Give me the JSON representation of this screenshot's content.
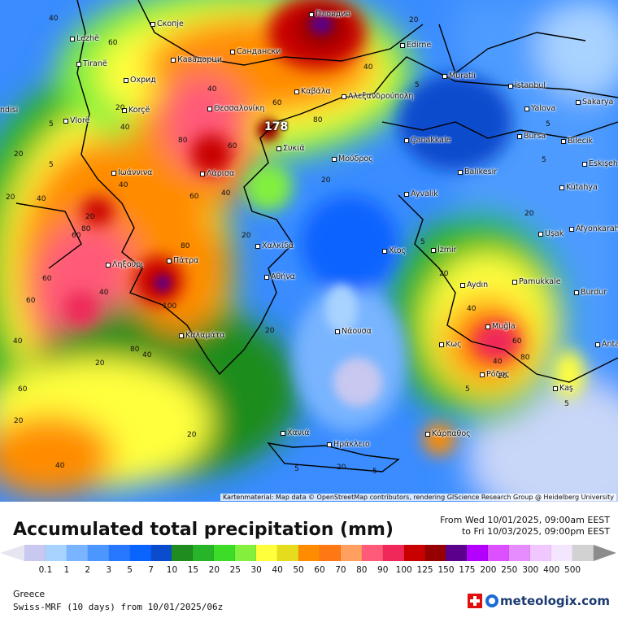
{
  "map": {
    "peak_value": "178",
    "attribution": "Kartenmaterial: Map data © OpenStreetMap contributors, rendering GIScience Research Group @ Heidelberg University",
    "cities": [
      {
        "id": "plovdiv",
        "name": "Пловдив"
      },
      {
        "id": "skopje",
        "name": "Скопје"
      },
      {
        "id": "lezhe",
        "name": "Lezhë"
      },
      {
        "id": "sandanski",
        "name": "Сандански"
      },
      {
        "id": "edirne",
        "name": "Edirne"
      },
      {
        "id": "kavadarci",
        "name": "Кавадарци"
      },
      {
        "id": "tirane",
        "name": "Tiranë"
      },
      {
        "id": "murath",
        "name": "Muratlı"
      },
      {
        "id": "ohrid",
        "name": "Охрид"
      },
      {
        "id": "kavala",
        "name": "Καβάλα"
      },
      {
        "id": "istanbul",
        "name": "İstanbul"
      },
      {
        "id": "alexandroupoli",
        "name": "Αλεξανδρούπολη"
      },
      {
        "id": "andisi",
        "name": "ndisi"
      },
      {
        "id": "korce",
        "name": "Korçë"
      },
      {
        "id": "thessaloniki",
        "name": "Θεσσαλονίκη"
      },
      {
        "id": "yalova",
        "name": "Yalova"
      },
      {
        "id": "sakarya",
        "name": "Sakarya"
      },
      {
        "id": "vlore",
        "name": "Vlorë"
      },
      {
        "id": "sykia",
        "name": "Συκιά"
      },
      {
        "id": "canakkale",
        "name": "Çanakkale"
      },
      {
        "id": "bursa",
        "name": "Bursa"
      },
      {
        "id": "bilecik",
        "name": "Bilecik"
      },
      {
        "id": "moudros",
        "name": "Μούδρος"
      },
      {
        "id": "eskisehir",
        "name": "Eskişeh"
      },
      {
        "id": "ioannina",
        "name": "Ιωάννινα"
      },
      {
        "id": "larisa",
        "name": "Λάρισα"
      },
      {
        "id": "balikesir",
        "name": "Balıkesir"
      },
      {
        "id": "kutahya",
        "name": "Kütahya"
      },
      {
        "id": "ayvalik",
        "name": "Ayvalık"
      },
      {
        "id": "usak",
        "name": "Uşak"
      },
      {
        "id": "afyonkarahisar",
        "name": "Afyonkarahi"
      },
      {
        "id": "chalkida",
        "name": "Χαλκίδα"
      },
      {
        "id": "chios",
        "name": "Χίος"
      },
      {
        "id": "izmir",
        "name": "İzmir"
      },
      {
        "id": "lixouri",
        "name": "Ληξούρι"
      },
      {
        "id": "patra",
        "name": "Πάτρα"
      },
      {
        "id": "athina",
        "name": "Αθήνα"
      },
      {
        "id": "aydin",
        "name": "Aydın"
      },
      {
        "id": "pamukkale",
        "name": "Pamukkale"
      },
      {
        "id": "burdur",
        "name": "Burdur"
      },
      {
        "id": "naousa",
        "name": "Νάουσα"
      },
      {
        "id": "mugla",
        "name": "Muğla"
      },
      {
        "id": "kalamata",
        "name": "Καλαμάτα"
      },
      {
        "id": "kos",
        "name": "Κως"
      },
      {
        "id": "antalya",
        "name": "Anta"
      },
      {
        "id": "rodos",
        "name": "Ρόδος"
      },
      {
        "id": "kas",
        "name": "Kaş"
      },
      {
        "id": "karpathos",
        "name": "Κάρπαθος"
      },
      {
        "id": "chania",
        "name": "Χανιά"
      },
      {
        "id": "irakleio",
        "name": "Ηράκλειο"
      }
    ],
    "contour_labels": [
      "60",
      "40",
      "20",
      "5",
      "40",
      "60",
      "80",
      "40",
      "20",
      "40",
      "20",
      "5",
      "5",
      "5",
      "20",
      "20",
      "40",
      "60",
      "80",
      "60",
      "40",
      "20",
      "5",
      "20",
      "40",
      "80",
      "60",
      "40",
      "20",
      "60",
      "100",
      "80",
      "40",
      "60",
      "20",
      "5",
      "20",
      "40",
      "60",
      "80",
      "40",
      "20",
      "5",
      "5",
      "20",
      "40",
      "60",
      "80",
      "20",
      "5",
      "40",
      "20",
      "5",
      "20"
    ]
  },
  "legend": {
    "title": "Accumulated total precipitation (mm)",
    "from_line": "From Wed 10/01/2025, 09:00am EEST",
    "to_line": "to Fri 10/03/2025, 09:00pm EEST",
    "colors": [
      "#c8c8f0",
      "#a8d2ff",
      "#78b4ff",
      "#4c96ff",
      "#2878ff",
      "#0a64ff",
      "#0a4ccd",
      "#1e8c1e",
      "#28b428",
      "#3cdc28",
      "#82f03c",
      "#ffff3c",
      "#e6dc1e",
      "#ff8c00",
      "#ff7814",
      "#ffa060",
      "#ff5a78",
      "#f0285a",
      "#c80000",
      "#960000",
      "#5a008c",
      "#b400ff",
      "#dc50ff",
      "#e68cff",
      "#f0c8ff",
      "#f5e6ff",
      "#d2d2d2"
    ],
    "ticks": [
      "0.1",
      "1",
      "2",
      "3",
      "5",
      "7",
      "10",
      "15",
      "20",
      "25",
      "30",
      "40",
      "50",
      "60",
      "70",
      "80",
      "90",
      "100",
      "125",
      "150",
      "175",
      "200",
      "250",
      "300",
      "400",
      "500"
    ],
    "region": "Greece",
    "model": "Swiss-MRF (10 days) from 10/01/2025/06z",
    "brand": "meteologix.com"
  }
}
